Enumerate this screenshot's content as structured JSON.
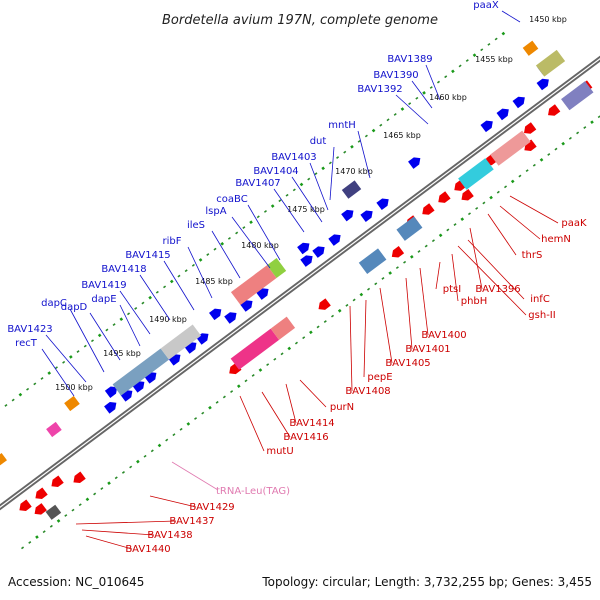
{
  "title": "Bordetella avium 197N, complete genome",
  "footer": {
    "accession": "Accession: NC_010645",
    "summary": "Topology: circular; Length: 3,732,255 bp; Genes: 3,455"
  },
  "ticks": [
    {
      "label": "1450 kbp",
      "x": 1
    },
    {
      "label": "1455 kbp",
      "x": 2
    },
    {
      "label": "1460 kbp",
      "x": 3
    },
    {
      "label": "1465 kbp",
      "x": 4
    },
    {
      "label": "1470 kbp",
      "x": 5
    },
    {
      "label": "1475 kbp",
      "x": 6
    },
    {
      "label": "1480 kbp",
      "x": 7
    },
    {
      "label": "1485 kbp",
      "x": 8
    },
    {
      "label": "1490 kbp",
      "x": 9
    },
    {
      "label": "1495 kbp",
      "x": 10
    },
    {
      "label": "1500 kbp",
      "x": 11
    }
  ],
  "genes_top": [
    "paaX",
    "BAV1389",
    "BAV1390",
    "BAV1392",
    "mntH",
    "dut",
    "BAV1403",
    "BAV1404",
    "BAV1407",
    "coaBC",
    "lspA",
    "ileS",
    "ribF",
    "BAV1415",
    "BAV1418",
    "BAV1419",
    "dapE",
    "dapD",
    "dapC",
    "BAV1423",
    "recT"
  ],
  "genes_bottom": [
    "paaK",
    "hemN",
    "thrS",
    "BAV1396",
    "infC",
    "gsh-II",
    "phbH",
    "ptsI",
    "BAV1400",
    "BAV1401",
    "BAV1405",
    "pepE",
    "BAV1408",
    "purN",
    "BAV1414",
    "BAV1416",
    "mutU",
    "BAV1429",
    "BAV1437",
    "BAV1438",
    "BAV1440"
  ],
  "trna": "tRNA-Leu(TAG)",
  "colors": {
    "forward": "#0000ee",
    "reverse": "#ee0000",
    "backbone": "#777777",
    "gc_tick": "#22aa22",
    "trna": "#e07ab0"
  }
}
